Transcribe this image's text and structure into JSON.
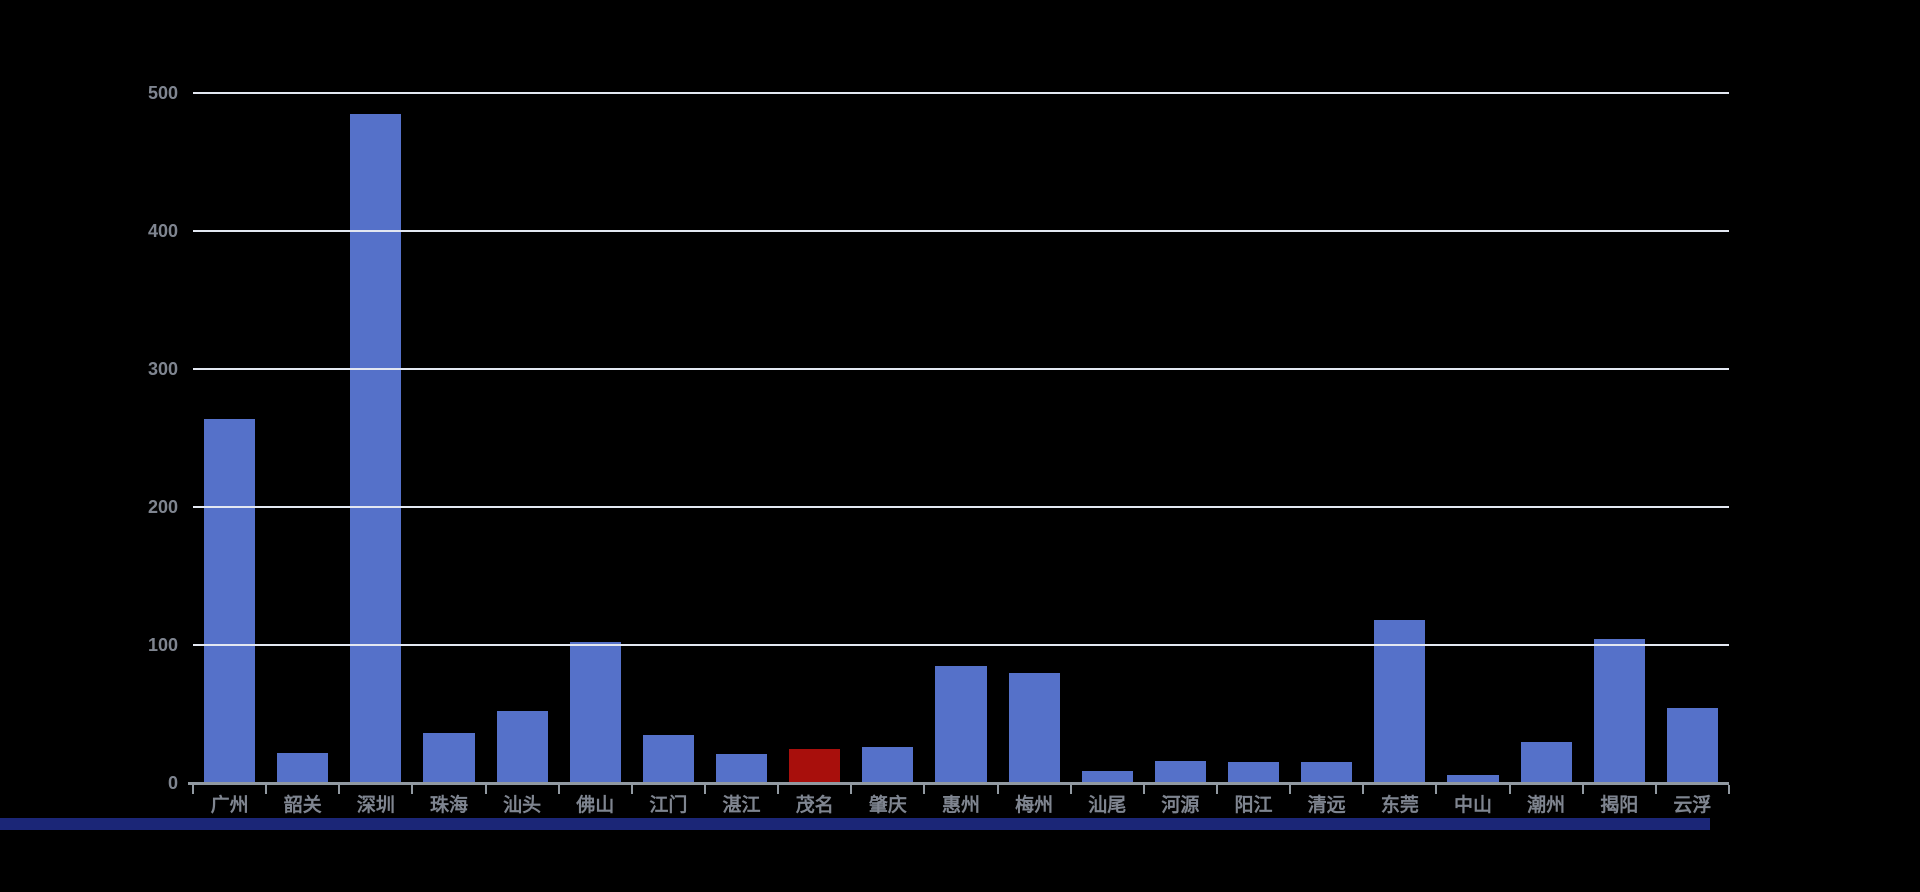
{
  "style": {
    "background": "#000000",
    "gridline_color": "#E3E8F2",
    "axis_color": "#9199A1",
    "label_color": "#7F8590",
    "bottom_strip_color": "#1B2677"
  },
  "chart_data": {
    "type": "bar",
    "categories": [
      "广州",
      "韶关",
      "深圳",
      "珠海",
      "汕头",
      "佛山",
      "江门",
      "湛江",
      "茂名",
      "肇庆",
      "惠州",
      "梅州",
      "汕尾",
      "河源",
      "阳江",
      "清远",
      "东莞",
      "中山",
      "潮州",
      "揭阳",
      "云浮"
    ],
    "values": [
      264,
      22,
      485,
      36,
      52,
      102,
      35,
      21,
      25,
      26,
      85,
      80,
      9,
      16,
      15,
      15,
      118,
      6,
      30,
      104,
      54
    ],
    "bar_color": "#5571C9",
    "highlight_index": 8,
    "highlight_color": "#A80F0C",
    "title": "",
    "xlabel": "",
    "ylabel": "",
    "ylim": [
      0,
      500
    ],
    "yticks": [
      0,
      100,
      200,
      300,
      400,
      500
    ],
    "grid": true,
    "legend": false
  }
}
